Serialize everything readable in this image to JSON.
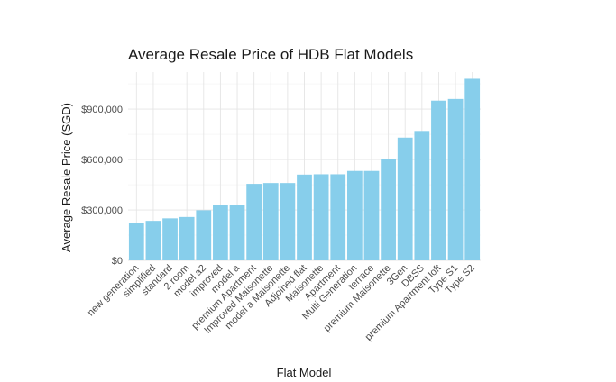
{
  "chart_data": {
    "type": "bar",
    "title": "Average Resale Price of HDB Flat Models",
    "xlabel": "Flat Model",
    "ylabel": "Average Resale Price (SGD)",
    "categories": [
      "new generation",
      "simplified",
      "standard",
      "2 room",
      "model a2",
      "improved",
      "model a",
      "premium Apartment",
      "Improved Maisonette",
      "model a Maisonette",
      "Adjoined flat",
      "Maisonette",
      "Apartment",
      "Multi Generation",
      "terrace",
      "premium Maisonette",
      "3Gen",
      "DBSS",
      "premium Apartment loft",
      "Type S1",
      "Type S2"
    ],
    "values": [
      225000,
      235000,
      250000,
      258000,
      298000,
      330000,
      330000,
      455000,
      460000,
      460000,
      510000,
      512000,
      512000,
      532000,
      532000,
      605000,
      730000,
      770000,
      950000,
      960000,
      1080000
    ],
    "ylim": [
      0,
      1120000
    ],
    "yticks": [
      0,
      300000,
      600000,
      900000
    ],
    "ytick_labels": [
      "$0",
      "$300,000",
      "$600,000",
      "$900,000"
    ],
    "grid": true,
    "bar_color": "#87CEEB"
  }
}
